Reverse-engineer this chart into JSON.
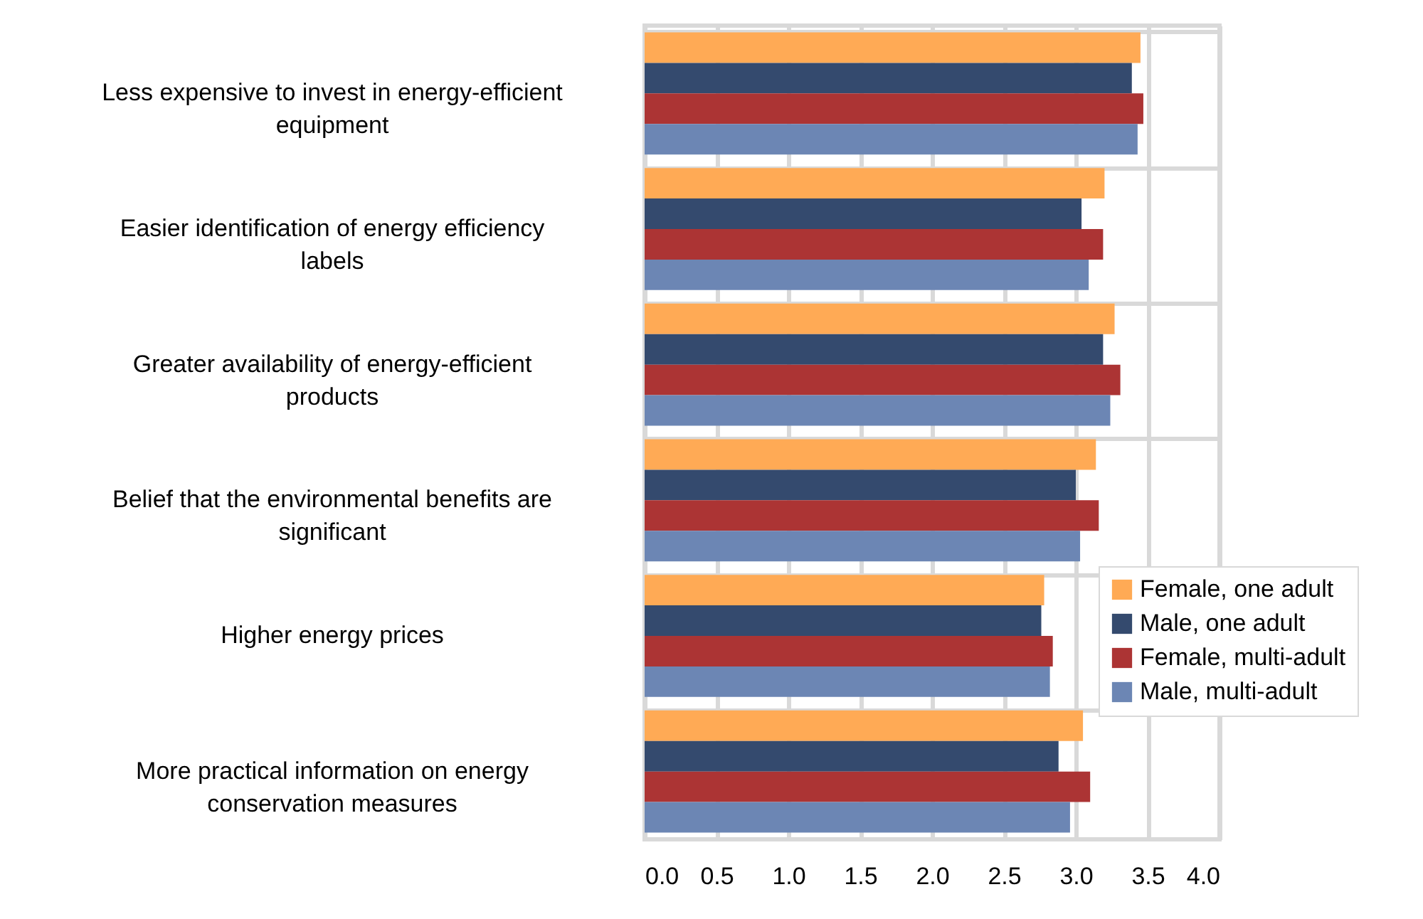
{
  "chart_data": {
    "type": "bar",
    "orientation": "horizontal",
    "categories": [
      "Less expensive to invest in energy-efficient equipment",
      "Easier identification of energy efficiency labels",
      "Greater availability of energy-efficient products",
      "Belief that the environmental benefits are significant",
      "Higher energy prices",
      "More practical information on energy conservation measures"
    ],
    "series": [
      {
        "name": "Female, one adult",
        "color": "#ffaa55",
        "values": [
          3.45,
          3.2,
          3.27,
          3.14,
          2.78,
          3.05
        ]
      },
      {
        "name": "Male, one adult",
        "color": "#344a6e",
        "values": [
          3.39,
          3.04,
          3.19,
          3.0,
          2.76,
          2.88
        ]
      },
      {
        "name": "Female, multi-adult",
        "color": "#ac3434",
        "values": [
          3.47,
          3.19,
          3.31,
          3.16,
          2.84,
          3.1
        ]
      },
      {
        "name": "Male, multi-adult",
        "color": "#6c86b4",
        "values": [
          3.43,
          3.09,
          3.24,
          3.03,
          2.82,
          2.96
        ]
      }
    ],
    "xlim": [
      0,
      4
    ],
    "xticks": [
      {
        "value": 0,
        "label": "0.0"
      },
      {
        "value": 0.5,
        "label": "0.5"
      },
      {
        "value": 1,
        "label": "1.0"
      },
      {
        "value": 1.5,
        "label": "1.5"
      },
      {
        "value": 2,
        "label": "2.0"
      },
      {
        "value": 2.5,
        "label": "2.5"
      },
      {
        "value": 3,
        "label": "3.0"
      },
      {
        "value": 3.5,
        "label": "3.5"
      },
      {
        "value": 4,
        "label": "4.0"
      }
    ],
    "grid": true,
    "legend": "bottom right"
  }
}
